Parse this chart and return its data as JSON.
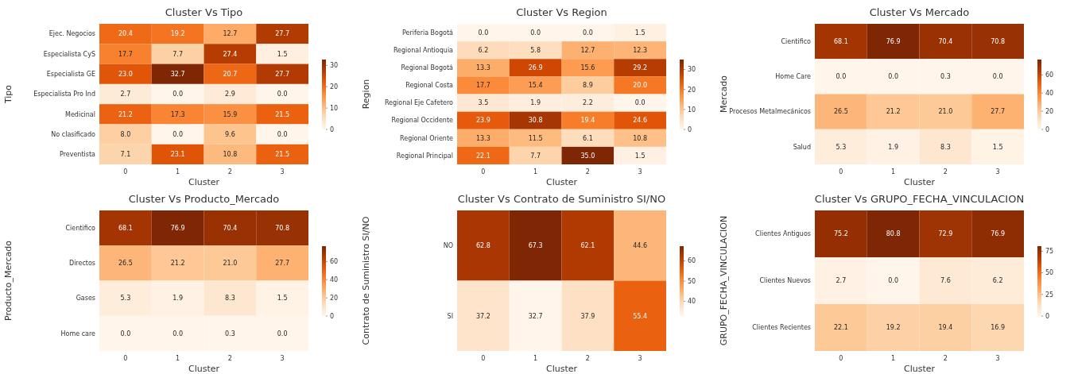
{
  "chart_data": [
    {
      "type": "heatmap",
      "title": "Cluster Vs Tipo",
      "xlabel": "Cluster",
      "ylabel": "Tipo",
      "categories": [
        "0",
        "1",
        "2",
        "3"
      ],
      "y_categories": [
        "Ejec. Negocios",
        "Especialista CyS",
        "Especialista GE",
        "Especialista Pro Ind",
        "Medicinal",
        "No clasificado",
        "Preventista"
      ],
      "cells": [
        [
          20.4,
          19.2,
          12.7,
          27.7
        ],
        [
          17.7,
          7.7,
          27.4,
          1.5
        ],
        [
          23.0,
          32.7,
          20.7,
          27.7
        ],
        [
          2.7,
          0.0,
          2.9,
          0.0
        ],
        [
          21.2,
          17.3,
          15.9,
          21.5
        ],
        [
          8.0,
          0.0,
          9.6,
          0.0
        ],
        [
          7.1,
          23.1,
          10.8,
          21.5
        ]
      ],
      "cell_labels": [
        [
          "20.4",
          "19.2",
          "12.7",
          "27.7"
        ],
        [
          "17.7",
          "7.7",
          "27.4",
          "1.5"
        ],
        [
          "23.0",
          "32.7",
          "20.7",
          "27.7"
        ],
        [
          "2.7",
          "0.0",
          "2.9",
          "0.0"
        ],
        [
          "21.2",
          "17.3",
          "15.9",
          "21.5"
        ],
        [
          "8.0",
          "0.0",
          "9.6",
          "0.0"
        ],
        [
          "7.1",
          "23.1",
          "10.8",
          "21.5"
        ]
      ],
      "clim": [
        0,
        32.7
      ],
      "cticks": [
        0,
        10,
        20,
        30
      ]
    },
    {
      "type": "heatmap",
      "title": "Cluster Vs Region",
      "xlabel": "Cluster",
      "ylabel": "Region",
      "categories": [
        "0",
        "1",
        "2",
        "3"
      ],
      "y_categories": [
        "Periferia Bogotá",
        "Regional Antioquia",
        "Regional Bogotá",
        "Regional Costa",
        "Regional Eje Cafetero",
        "Regional Occidente",
        "Regional Oriente",
        "Regional Principal"
      ],
      "cells": [
        [
          0.0,
          0.0,
          0.0,
          1.5
        ],
        [
          6.2,
          5.8,
          12.7,
          12.3
        ],
        [
          13.3,
          26.9,
          15.6,
          29.2
        ],
        [
          17.7,
          15.4,
          8.9,
          20.0
        ],
        [
          3.5,
          1.9,
          2.2,
          0.0
        ],
        [
          23.9,
          30.8,
          19.4,
          24.6
        ],
        [
          13.3,
          11.5,
          6.1,
          10.8
        ],
        [
          22.1,
          7.7,
          35.0,
          1.5
        ]
      ],
      "cell_labels": [
        [
          "0.0",
          "0.0",
          "0.0",
          "1.5"
        ],
        [
          "6.2",
          "5.8",
          "12.7",
          "12.3"
        ],
        [
          "13.3",
          "26.9",
          "15.6",
          "29.2"
        ],
        [
          "17.7",
          "15.4",
          "8.9",
          "20.0"
        ],
        [
          "3.5",
          "1.9",
          "2.2",
          "0.0"
        ],
        [
          "23.9",
          "30.8",
          "19.4",
          "24.6"
        ],
        [
          "13.3",
          "11.5",
          "6.1",
          "10.8"
        ],
        [
          "22.1",
          "7.7",
          "35.0",
          "1.5"
        ]
      ],
      "clim": [
        0,
        35.0
      ],
      "cticks": [
        0,
        10,
        20,
        30
      ]
    },
    {
      "type": "heatmap",
      "title": "Cluster Vs Mercado",
      "xlabel": "Cluster",
      "ylabel": "Mercado",
      "categories": [
        "0",
        "1",
        "2",
        "3"
      ],
      "y_categories": [
        "Cientifico",
        "Home Care",
        "Procesos Metalmecánicos",
        "Salud"
      ],
      "cells": [
        [
          68.1,
          76.9,
          70.4,
          70.8
        ],
        [
          0.0,
          0.0,
          0.3,
          0.0
        ],
        [
          26.5,
          21.2,
          21.0,
          27.7
        ],
        [
          5.3,
          1.9,
          8.3,
          1.5
        ]
      ],
      "cell_labels": [
        [
          "68.1",
          "76.9",
          "70.4",
          "70.8"
        ],
        [
          "0.0",
          "0.0",
          "0.3",
          "0.0"
        ],
        [
          "26.5",
          "21.2",
          "21.0",
          "27.7"
        ],
        [
          "5.3",
          "1.9",
          "8.3",
          "1.5"
        ]
      ],
      "clim": [
        0,
        76.9
      ],
      "cticks": [
        0,
        20,
        40,
        60
      ]
    },
    {
      "type": "heatmap",
      "title": "Cluster Vs Producto_Mercado",
      "xlabel": "Cluster",
      "ylabel": "Producto_Mercado",
      "categories": [
        "0",
        "1",
        "2",
        "3"
      ],
      "y_categories": [
        "Cientifico",
        "Directos",
        "Gases",
        "Home care"
      ],
      "cells": [
        [
          68.1,
          76.9,
          70.4,
          70.8
        ],
        [
          26.5,
          21.2,
          21.0,
          27.7
        ],
        [
          5.3,
          1.9,
          8.3,
          1.5
        ],
        [
          0.0,
          0.0,
          0.3,
          0.0
        ]
      ],
      "cell_labels": [
        [
          "68.1",
          "76.9",
          "70.4",
          "70.8"
        ],
        [
          "26.5",
          "21.2",
          "21.0",
          "27.7"
        ],
        [
          "5.3",
          "1.9",
          "8.3",
          "1.5"
        ],
        [
          "0.0",
          "0.0",
          "0.3",
          "0.0"
        ]
      ],
      "clim": [
        0,
        76.9
      ],
      "cticks": [
        0,
        20,
        40,
        60
      ]
    },
    {
      "type": "heatmap",
      "title": "Cluster Vs Contrato de Suministro SI/NO",
      "xlabel": "Cluster",
      "ylabel": "Contrato de Suministro SI/NO",
      "categories": [
        "0",
        "1",
        "2",
        "3"
      ],
      "y_categories": [
        "NO",
        "SI"
      ],
      "cells": [
        [
          62.8,
          67.3,
          62.1,
          44.6
        ],
        [
          37.2,
          32.7,
          37.9,
          55.4
        ]
      ],
      "cell_labels": [
        [
          "62.8",
          "67.3",
          "62.1",
          "44.6"
        ],
        [
          "37.2",
          "32.7",
          "37.9",
          "55.4"
        ]
      ],
      "clim": [
        32.7,
        67.3
      ],
      "cticks": [
        40,
        50,
        60
      ]
    },
    {
      "type": "heatmap",
      "title": "Cluster Vs GRUPO_FECHA_VINCULACION",
      "xlabel": "Cluster",
      "ylabel": "GRUPO_FECHA_VINCULACION",
      "categories": [
        "0",
        "1",
        "2",
        "3"
      ],
      "y_categories": [
        "Clientes Antiguos",
        "Clientes Nuevos",
        "Clientes Recientes"
      ],
      "cells": [
        [
          75.2,
          80.8,
          72.9,
          76.9
        ],
        [
          2.7,
          0.0,
          7.6,
          6.2
        ],
        [
          22.1,
          19.2,
          19.4,
          16.9
        ]
      ],
      "cell_labels": [
        [
          "75.2",
          "80.8",
          "72.9",
          "76.9"
        ],
        [
          "2.7",
          "0.0",
          "7.6",
          "6.2"
        ],
        [
          "22.1",
          "19.2",
          "19.4",
          "16.9"
        ]
      ],
      "clim": [
        0,
        80.8
      ],
      "cticks": [
        0,
        25,
        50,
        75
      ]
    }
  ]
}
